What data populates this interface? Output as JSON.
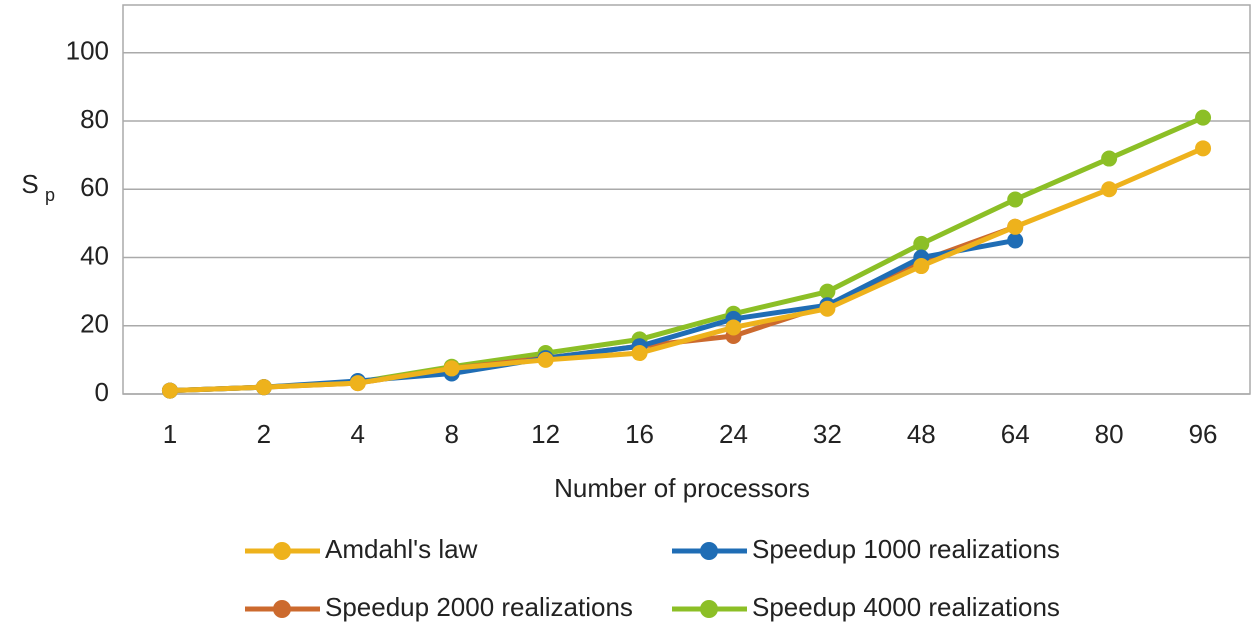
{
  "chart_data": {
    "type": "line",
    "xlabel": "Number of processors",
    "ylabel": {
      "main": "S",
      "sub": "p"
    },
    "categories": [
      1,
      2,
      4,
      8,
      12,
      16,
      24,
      32,
      48,
      64,
      80,
      96
    ],
    "ylim": [
      0,
      114
    ],
    "yticks": [
      0,
      20,
      40,
      60,
      80,
      100
    ],
    "grid": true,
    "legend": "bottom",
    "series": [
      {
        "name": "Amdahl's law",
        "color": "#eeb21c",
        "values": [
          1,
          2,
          3.2,
          7.5,
          10,
          12,
          19.5,
          25,
          37.5,
          49,
          60,
          72
        ]
      },
      {
        "name": "Speedup 1000 realizations",
        "color": "#1f6db5",
        "values": [
          1,
          2,
          3.8,
          6,
          10.5,
          14,
          22,
          26,
          40,
          45,
          null,
          null
        ]
      },
      {
        "name": "Speedup 2000 realizations",
        "color": "#cc6a2e",
        "values": [
          1,
          2,
          3.2,
          7.5,
          10.5,
          14,
          17,
          26,
          39,
          49,
          null,
          null
        ]
      },
      {
        "name": "Speedup 4000 realizations",
        "color": "#8cbf26",
        "values": [
          1,
          2,
          3.5,
          8,
          12,
          16,
          23.5,
          30,
          44,
          57,
          69,
          81
        ]
      }
    ]
  }
}
